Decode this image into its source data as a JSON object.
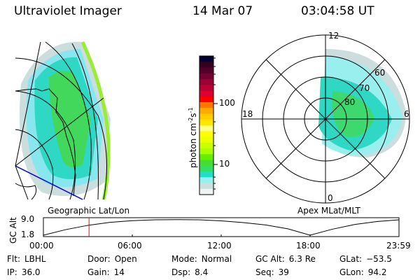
{
  "header": {
    "instrument": "Ultraviolet Imager",
    "date": "14 Mar 07",
    "time": "03:04:58 UT"
  },
  "colorbar": {
    "label": "photon cm",
    "label_exp1": "-2",
    "label_mid": "s",
    "label_exp2": "-1",
    "ticks": [
      "100",
      "10"
    ],
    "colors": [
      "#000033",
      "#330022",
      "#55002a",
      "#770033",
      "#990033",
      "#bb0033",
      "#dd0033",
      "#ff0000",
      "#ff7700",
      "#ffaa00",
      "#ffcc00",
      "#ffe600",
      "#ffff88",
      "#ffff00",
      "#eeff00",
      "#ccff00",
      "#aaff00",
      "#66ee00",
      "#44dd33",
      "#33dd66",
      "#22ddcc",
      "#99eeee",
      "#ccdddd",
      "#eef5f0"
    ]
  },
  "polar_plot": {
    "mlt_labels": [
      "12",
      "18",
      "6",
      "0"
    ],
    "lat_labels": [
      "80",
      "70",
      "60"
    ]
  },
  "map_labels": {
    "left": "Geographic Lat/Lon",
    "right": "Apex MLat/MLT"
  },
  "chart_data": {
    "type": "line",
    "title": "",
    "ylabel": "GC Alt",
    "yticks": [
      "9.0",
      "1.8"
    ],
    "ylim": [
      1.8,
      9.0
    ],
    "xticks": [
      "00:00",
      "06:00",
      "12:00",
      "18:00",
      "23:59"
    ],
    "x_hours": [
      0,
      1.5,
      3,
      4.5,
      6,
      7.5,
      9,
      10.5,
      12,
      13.5,
      15,
      16.5,
      18,
      19.5,
      21,
      22.5,
      24
    ],
    "y": [
      1.8,
      4.4,
      6.4,
      7.8,
      8.6,
      9.0,
      9.1,
      9.0,
      8.5,
      7.7,
      6.6,
      4.8,
      1.8,
      4.6,
      6.8,
      8.2,
      9.0
    ],
    "current_time_hours": 3.08,
    "current_marker_color": "#ff0000"
  },
  "info": [
    {
      "label": "Flt:",
      "value": "LBHL"
    },
    {
      "label": "IP:",
      "value": "36.0"
    },
    {
      "label": "Door:",
      "value": "Open"
    },
    {
      "label": "Gain:",
      "value": "14"
    },
    {
      "label": "Mode:",
      "value": "Normal"
    },
    {
      "label": "Dsp:",
      "value": "8.4"
    },
    {
      "label": "GC Alt:",
      "value": "6.3 Re"
    },
    {
      "label": "Seq:",
      "value": "39"
    },
    {
      "label": "GLat:",
      "value": "−53.5"
    },
    {
      "label": "GLon:",
      "value": "94.2"
    }
  ]
}
